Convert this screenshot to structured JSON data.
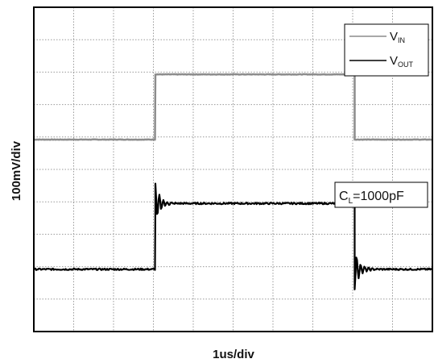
{
  "chart_data": {
    "type": "line",
    "xlabel": "1us/div",
    "ylabel": "100mV/div",
    "x_divisions": 10,
    "y_divisions": 10,
    "grid": true,
    "legend": "top-right",
    "colors": {
      "frame": "#000000",
      "grid": "#9a9a9a",
      "vin": "#8c8c8c",
      "vout": "#000000"
    },
    "series": [
      {
        "name": "V_IN",
        "label_main": "V",
        "label_sub": "IN",
        "color": "#8c8c8c",
        "x": [
          0,
          3.05,
          3.05,
          8.05,
          8.05,
          10
        ],
        "y": [
          5.92,
          5.92,
          7.93,
          7.93,
          5.92,
          5.92
        ]
      },
      {
        "name": "V_OUT",
        "label_main": "V",
        "label_sub": "OUT",
        "color": "#000000",
        "x": [
          0,
          3.05,
          3.05,
          8.05,
          8.05,
          10
        ],
        "y": [
          1.92,
          1.92,
          3.95,
          3.95,
          1.92,
          1.92
        ],
        "ringing_overshoot_divs": 0.6
      }
    ],
    "annotations": [
      {
        "text_main": "C",
        "text_sub": "L",
        "text_rest": "=1000pF"
      }
    ]
  }
}
